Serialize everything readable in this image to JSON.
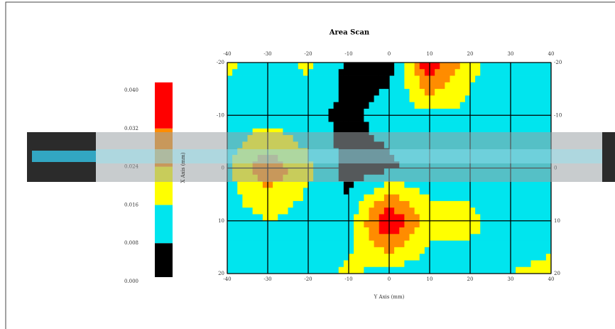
{
  "chart_data": {
    "type": "contour",
    "title": "Area Scan",
    "x_label": "Y Axis (mm)",
    "y_label": "X Axis (mm)",
    "x": [
      -40,
      -30,
      -20,
      -10,
      0,
      10,
      20,
      30,
      40
    ],
    "y": [
      -20,
      -10,
      0,
      10,
      20
    ],
    "z": [
      [
        0.018,
        0.012,
        0.018,
        0.006,
        0.004,
        0.04,
        0.018,
        0.012,
        0.012
      ],
      [
        0.012,
        0.012,
        0.01,
        0.006,
        0.012,
        0.014,
        0.014,
        0.012,
        0.012
      ],
      [
        0.014,
        0.03,
        0.018,
        0.004,
        0.006,
        0.012,
        0.012,
        0.012,
        0.012
      ],
      [
        0.012,
        0.016,
        0.012,
        0.012,
        0.042,
        0.018,
        0.018,
        0.012,
        0.012
      ],
      [
        0.012,
        0.012,
        0.012,
        0.018,
        0.012,
        0.012,
        0.012,
        0.016,
        0.018
      ]
    ],
    "xlim": [
      -40,
      40
    ],
    "ylim": [
      -20,
      20
    ],
    "y_inverted": true,
    "xticks": [
      -40,
      -30,
      -20,
      -10,
      0,
      10,
      20,
      30,
      40
    ],
    "yticks": [
      -20,
      -10,
      0,
      10,
      20
    ],
    "grid": true,
    "levels": [
      {
        "value": 0,
        "label": "0.000"
      },
      {
        "value": 0.008,
        "label": "0.008"
      },
      {
        "value": 0.016,
        "label": "0.016"
      },
      {
        "value": 0.024,
        "label": "0.024"
      },
      {
        "value": 0.032,
        "label": "0.032"
      },
      {
        "value": 0.04,
        "label": "0.040"
      }
    ],
    "level_colors": [
      "#000000",
      "#00e5ee",
      "#ffff00",
      "#ff8c00",
      "#ff0000"
    ]
  }
}
